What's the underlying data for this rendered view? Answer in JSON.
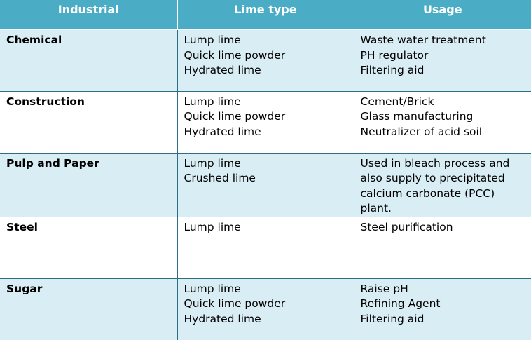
{
  "headers": [
    "Industrial",
    "Lime type",
    "Usage"
  ],
  "rows": [
    {
      "industry": "Chemical",
      "lime_types": [
        "Lump lime",
        "Quick lime powder",
        "Hydrated lime"
      ],
      "usage": [
        "Waste water treatment",
        "PH regulator",
        "Filtering aid"
      ]
    },
    {
      "industry": "Construction",
      "lime_types": [
        "Lump lime",
        "Quick lime powder",
        "Hydrated lime"
      ],
      "usage": [
        "Cement/Brick",
        "Glass manufacturing",
        "Neutralizer of acid soil"
      ]
    },
    {
      "industry": "Pulp and Paper",
      "lime_types": [
        "Lump lime",
        "Crushed lime"
      ],
      "usage": [
        "Used in bleach process and also supply to precipitated calcium carbonate (PCC) plant."
      ]
    },
    {
      "industry": "Steel",
      "lime_types": [
        "Lump lime"
      ],
      "usage": [
        "Steel purification"
      ]
    },
    {
      "industry": "Sugar",
      "lime_types": [
        "Lump lime",
        "Quick lime powder",
        "Hydrated lime"
      ],
      "usage": [
        "Raise pH",
        "Refining Agent",
        "Filtering aid"
      ]
    }
  ],
  "colors": {
    "header_bg": "#4badc5",
    "shaded_row_bg": "#d9edf4",
    "grid_line": "#2c6e86"
  }
}
